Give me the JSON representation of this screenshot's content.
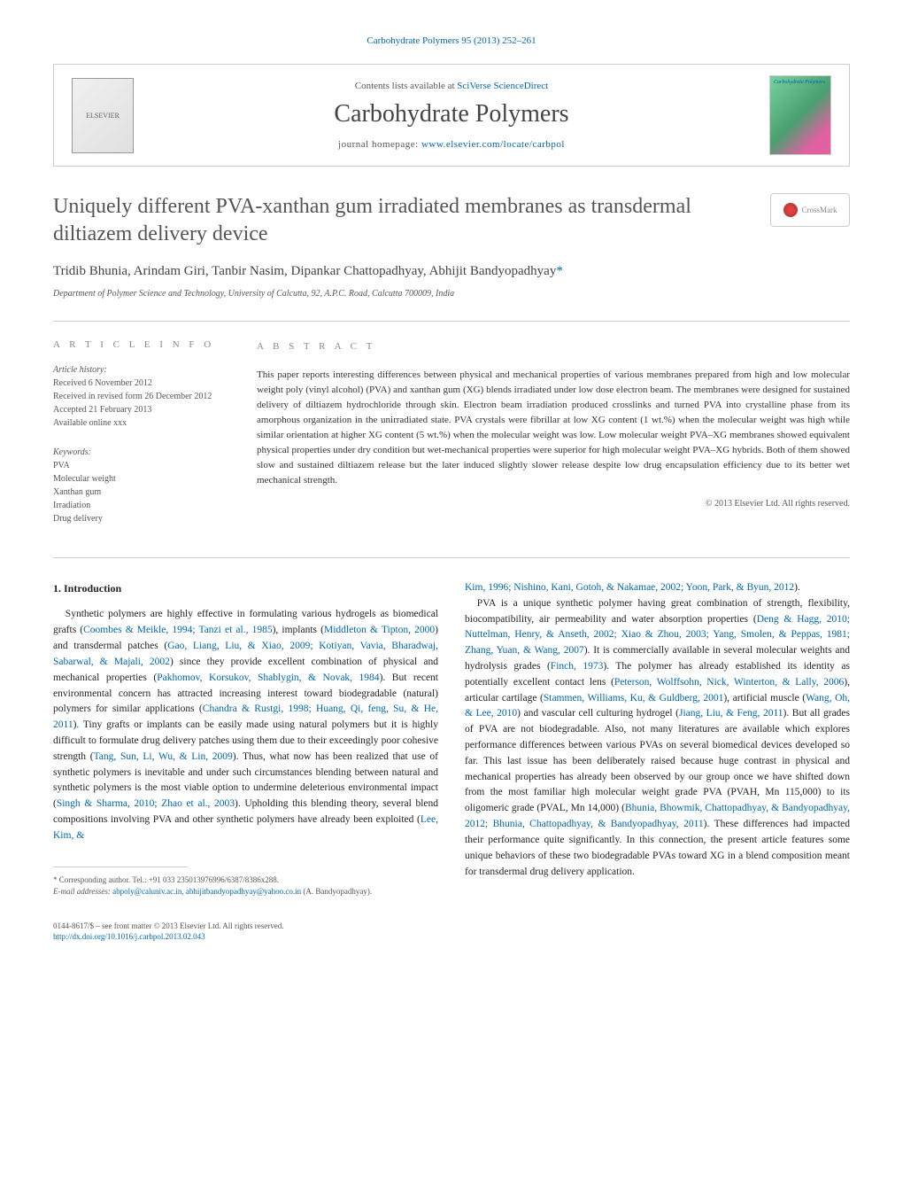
{
  "header": {
    "citation": "Carbohydrate Polymers 95 (2013) 252–261"
  },
  "publisher": {
    "logo_alt": "ELSEVIER",
    "contents_prefix": "Contents lists available at ",
    "contents_link": "SciVerse ScienceDirect",
    "journal_name": "Carbohydrate Polymers",
    "homepage_prefix": "journal homepage: ",
    "homepage_url": "www.elsevier.com/locate/carbpol",
    "cover_label": "Carbohydrate Polymers"
  },
  "crossmark": {
    "label": "CrossMark"
  },
  "article": {
    "title": "Uniquely different PVA-xanthan gum irradiated membranes as transdermal diltiazem delivery device",
    "authors": "Tridib Bhunia, Arindam Giri, Tanbir Nasim, Dipankar Chattopadhyay, Abhijit Bandyopadhyay",
    "corresponding_marker": "*",
    "affiliation": "Department of Polymer Science and Technology, University of Calcutta, 92, A.P.C. Road, Calcutta 700009, India"
  },
  "info": {
    "label": "a r t i c l e   i n f o",
    "history_heading": "Article history:",
    "received": "Received 6 November 2012",
    "revised": "Received in revised form 26 December 2012",
    "accepted": "Accepted 21 February 2013",
    "online": "Available online xxx",
    "keywords_heading": "Keywords:",
    "kw1": "PVA",
    "kw2": "Molecular weight",
    "kw3": "Xanthan gum",
    "kw4": "Irradiation",
    "kw5": "Drug delivery"
  },
  "abstract": {
    "label": "a b s t r a c t",
    "text": "This paper reports interesting differences between physical and mechanical properties of various membranes prepared from high and low molecular weight poly (vinyl alcohol) (PVA) and xanthan gum (XG) blends irradiated under low dose electron beam. The membranes were designed for sustained delivery of diltiazem hydrochloride through skin. Electron beam irradiation produced crosslinks and turned PVA into crystalline phase from its amorphous organization in the unirradiated state. PVA crystals were fibrillar at low XG content (1 wt.%) when the molecular weight was high while similar orientation at higher XG content (5 wt.%) when the molecular weight was low. Low molecular weight PVA–XG membranes showed equivalent physical properties under dry condition but wet-mechanical properties were superior for high molecular weight PVA–XG hybrids. Both of them showed slow and sustained diltiazem release but the later induced slightly slower release despite low drug encapsulation efficiency due to its better wet mechanical strength.",
    "copyright": "© 2013 Elsevier Ltd. All rights reserved."
  },
  "body": {
    "section_number": "1.",
    "section_title": "Introduction",
    "col1_p1a": "Synthetic polymers are highly effective in formulating various hydrogels as biomedical grafts (",
    "col1_r1": "Coombes & Meikle, 1994; Tanzi et al., 1985",
    "col1_p1b": "), implants (",
    "col1_r2": "Middleton & Tipton, 2000",
    "col1_p1c": ") and transdermal patches (",
    "col1_r3": "Gao, Liang, Liu, & Xiao, 2009; Kotiyan, Vavia, Bharadwaj, Sabarwal, & Majali, 2002",
    "col1_p1d": ") since they provide excellent combination of physical and mechanical properties (",
    "col1_r4": "Pakhomov, Korsukov, Shablygin, & Novak, 1984",
    "col1_p1e": "). But recent environmental concern has attracted increasing interest toward biodegradable (natural) polymers for similar applications (",
    "col1_r5": "Chandra & Rustgi, 1998; Huang, Qi, feng, Su, & He, 2011",
    "col1_p1f": "). Tiny grafts or implants can be easily made using natural polymers but it is highly difficult to formulate drug delivery patches using them due to their exceedingly poor cohesive strength (",
    "col1_r6": "Tang, Sun, Li, Wu, & Lin, 2009",
    "col1_p1g": "). Thus, what now has been realized that use of synthetic polymers is inevitable and under such circumstances blending between natural and synthetic polymers is the most viable option to undermine deleterious environmental impact (",
    "col1_r7": "Singh & Sharma, 2010; Zhao et al., 2003",
    "col1_p1h": "). Upholding this blending theory, several blend compositions involving PVA and other synthetic polymers have already been exploited (",
    "col1_r8": "Lee, Kim, &",
    "col2_r1": "Kim, 1996; Nishino, Kani, Gotoh, & Nakamae, 2002; Yoon, Park, & Byun, 2012",
    "col2_p1a": ").",
    "col2_p2a": "PVA is a unique synthetic polymer having great combination of strength, flexibility, biocompatibility, air permeability and water absorption properties (",
    "col2_r2": "Deng & Hagg, 2010; Nuttelman, Henry, & Anseth, 2002; Xiao & Zhou, 2003; Yang, Smolen, & Peppas, 1981; Zhang, Yuan, & Wang, 2007",
    "col2_p2b": "). It is commercially available in several molecular weights and hydrolysis grades (",
    "col2_r3": "Finch, 1973",
    "col2_p2c": "). The polymer has already established its identity as potentially excellent contact lens (",
    "col2_r4": "Peterson, Wolffsohn, Nick, Winterton, & Lally, 2006",
    "col2_p2d": "), articular cartilage (",
    "col2_r5": "Stammen, Williams, Ku, & Guldberg, 2001",
    "col2_p2e": "), artificial muscle (",
    "col2_r6": "Wang, Oh, & Lee, 2010",
    "col2_p2f": ") and vascular cell culturing hydrogel (",
    "col2_r7": "Jiang, Liu, & Feng, 2011",
    "col2_p2g": "). But all grades of PVA are not biodegradable. Also, not many literatures are available which explores performance differences between various PVAs on several biomedical devices developed so far. This last issue has been deliberately raised because huge contrast in physical and mechanical properties has already been observed by our group once we have shifted down from the most familiar high molecular weight grade PVA (PVAH, Mn 115,000) to its oligomeric grade (PVAL, Mn 14,000) (",
    "col2_r8": "Bhunia, Bhowmik, Chattopadhyay, & Bandyopadhyay, 2012; Bhunia, Chattopadhyay, & Bandyopadhyay, 2011",
    "col2_p2h": "). These differences had impacted their performance quite significantly. In this connection, the present article features some unique behaviors of these two biodegradable PVAs toward XG in a blend composition meant for transdermal drug delivery application."
  },
  "footnote": {
    "corr_label": "* Corresponding author. Tel.: +91 033 235013976996/6387/8386x288.",
    "email_label": "E-mail addresses: ",
    "email1": "abpoly@caluniv.ac.in",
    "email_sep": ", ",
    "email2": "abhijitbandyopadhyay@yahoo.co.in",
    "email_suffix": " (A. Bandyopadhyay)."
  },
  "footer": {
    "issn": "0144-8617/$ – see front matter © 2013 Elsevier Ltd. All rights reserved.",
    "doi_label": "http://dx.doi.org/",
    "doi": "10.1016/j.carbpol.2013.02.043"
  }
}
